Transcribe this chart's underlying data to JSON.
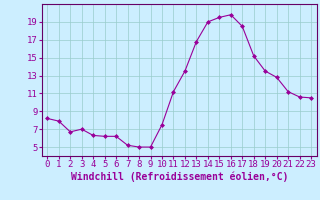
{
  "x": [
    0,
    1,
    2,
    3,
    4,
    5,
    6,
    7,
    8,
    9,
    10,
    11,
    12,
    13,
    14,
    15,
    16,
    17,
    18,
    19,
    20,
    21,
    22,
    23
  ],
  "y": [
    8.2,
    7.9,
    6.7,
    7.0,
    6.3,
    6.2,
    6.2,
    5.2,
    5.0,
    5.0,
    7.5,
    11.2,
    13.5,
    16.8,
    19.0,
    19.5,
    19.8,
    18.5,
    15.2,
    13.5,
    12.8,
    11.2,
    10.6,
    10.5
  ],
  "line_color": "#990099",
  "marker": "D",
  "marker_size": 2,
  "background_color": "#cceeff",
  "grid_color": "#99cccc",
  "xlabel": "Windchill (Refroidissement éolien,°C)",
  "xlabel_fontsize": 7,
  "ylim": [
    4,
    21
  ],
  "xlim": [
    -0.5,
    23.5
  ],
  "yticks": [
    5,
    7,
    9,
    11,
    13,
    15,
    17,
    19
  ],
  "xticks": [
    0,
    1,
    2,
    3,
    4,
    5,
    6,
    7,
    8,
    9,
    10,
    11,
    12,
    13,
    14,
    15,
    16,
    17,
    18,
    19,
    20,
    21,
    22,
    23
  ],
  "tick_fontsize": 6.5,
  "spine_color": "#660066"
}
